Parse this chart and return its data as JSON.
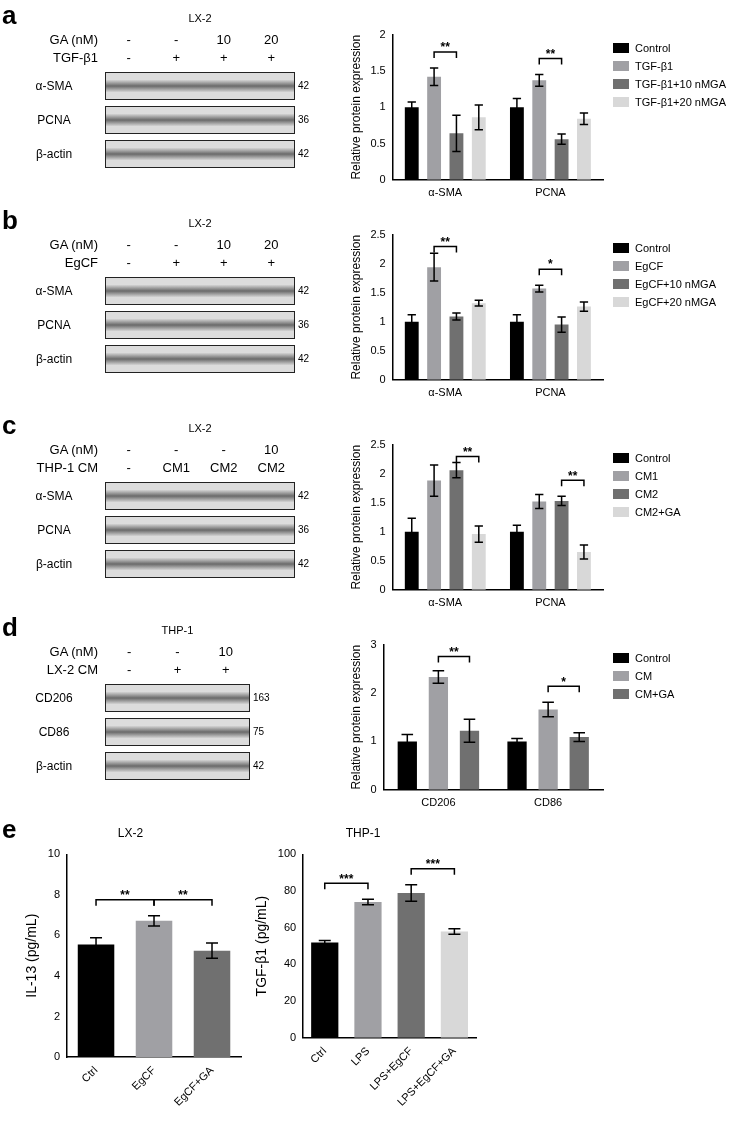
{
  "chart_data": [
    {
      "type": "other",
      "title": "LX-2",
      "annotations": [
        "a"
      ],
      "cell_labels": [
        [
          "GA (nM)",
          "-",
          "-",
          "10",
          "20"
        ],
        [
          "TGF-β1",
          "-",
          "+",
          "+",
          "+"
        ]
      ],
      "y_categories": [
        "α-SMA",
        "PCNA",
        "β-actin"
      ],
      "y2_categories": [
        "42",
        "36",
        "42"
      ]
    },
    {
      "type": "bar",
      "categories": [
        "α-SMA",
        "PCNA"
      ],
      "ylabel": "Relative protein expression",
      "ylim": [
        0,
        2
      ],
      "yticks": [
        0,
        0.5,
        1,
        1.5,
        2
      ],
      "legend": "right",
      "series": [
        {
          "name": "Control",
          "color": "#000000",
          "values": [
            1.0,
            1.0
          ],
          "errors": [
            0.07,
            0.12
          ]
        },
        {
          "name": "TGF-β1",
          "color": "#a0a0a4",
          "values": [
            1.42,
            1.37
          ],
          "errors": [
            0.12,
            0.08
          ]
        },
        {
          "name": "TGF-β1+10 nMGA",
          "color": "#707070",
          "values": [
            0.64,
            0.56
          ],
          "errors": [
            0.25,
            0.07
          ]
        },
        {
          "name": "TGF-β1+20 nMGA",
          "color": "#d8d8d8",
          "values": [
            0.86,
            0.84
          ],
          "errors": [
            0.17,
            0.08
          ]
        }
      ],
      "annotations": [
        "**",
        "**"
      ]
    },
    {
      "type": "other",
      "title": "LX-2",
      "annotations": [
        "b"
      ],
      "cell_labels": [
        [
          "GA (nM)",
          "-",
          "-",
          "10",
          "20"
        ],
        [
          "EgCF",
          "-",
          "+",
          "+",
          "+"
        ]
      ],
      "y_categories": [
        "α-SMA",
        "PCNA",
        "β-actin"
      ],
      "y2_categories": [
        "42",
        "36",
        "42"
      ]
    },
    {
      "type": "bar",
      "categories": [
        "α-SMA",
        "PCNA"
      ],
      "ylabel": "Relative protein expression",
      "ylim": [
        0,
        2.5
      ],
      "yticks": [
        0,
        0.5,
        1,
        1.5,
        2,
        2.5
      ],
      "legend": "right",
      "series": [
        {
          "name": "Control",
          "color": "#000000",
          "values": [
            1.0,
            1.0
          ],
          "errors": [
            0.12,
            0.12
          ]
        },
        {
          "name": "EgCF",
          "color": "#a0a0a4",
          "values": [
            1.94,
            1.57
          ],
          "errors": [
            0.24,
            0.06
          ]
        },
        {
          "name": "EgCF+10 nMGA",
          "color": "#707070",
          "values": [
            1.09,
            0.95
          ],
          "errors": [
            0.06,
            0.13
          ]
        },
        {
          "name": "EgCF+20 nMGA",
          "color": "#d8d8d8",
          "values": [
            1.32,
            1.26
          ],
          "errors": [
            0.05,
            0.08
          ]
        }
      ],
      "annotations": [
        "**",
        "*"
      ]
    },
    {
      "type": "other",
      "title": "LX-2",
      "annotations": [
        "c"
      ],
      "cell_labels": [
        [
          "GA (nM)",
          "-",
          "-",
          "-",
          "10"
        ],
        [
          "THP-1 CM",
          "-",
          "CM1",
          "CM2",
          "CM2"
        ]
      ],
      "y_categories": [
        "α-SMA",
        "PCNA",
        "β-actin"
      ],
      "y2_categories": [
        "42",
        "36",
        "42"
      ]
    },
    {
      "type": "bar",
      "categories": [
        "α-SMA",
        "PCNA"
      ],
      "ylabel": "Relative protein expression",
      "ylim": [
        0,
        2.5
      ],
      "yticks": [
        0,
        0.5,
        1,
        1.5,
        2,
        2.5
      ],
      "legend": "right",
      "series": [
        {
          "name": "Control",
          "color": "#000000",
          "values": [
            1.0,
            1.0
          ],
          "errors": [
            0.23,
            0.11
          ]
        },
        {
          "name": "CM1",
          "color": "#a0a0a4",
          "values": [
            1.88,
            1.52
          ],
          "errors": [
            0.27,
            0.12
          ]
        },
        {
          "name": "CM2",
          "color": "#707070",
          "values": [
            2.06,
            1.53
          ],
          "errors": [
            0.13,
            0.08
          ]
        },
        {
          "name": "CM2+GA",
          "color": "#d8d8d8",
          "values": [
            0.96,
            0.65
          ],
          "errors": [
            0.14,
            0.12
          ]
        }
      ],
      "annotations": [
        "**",
        "**"
      ]
    },
    {
      "type": "other",
      "title": "THP-1",
      "annotations": [
        "d"
      ],
      "cell_labels": [
        [
          "GA (nM)",
          "-",
          "-",
          "10"
        ],
        [
          "LX-2 CM",
          "-",
          "+",
          "+"
        ]
      ],
      "y_categories": [
        "CD206",
        "CD86",
        "β-actin"
      ],
      "y2_categories": [
        "163",
        "75",
        "42"
      ]
    },
    {
      "type": "bar",
      "categories": [
        "CD206",
        "CD86"
      ],
      "ylabel": "Relative protein expression",
      "ylim": [
        0,
        3
      ],
      "yticks": [
        0,
        1,
        2,
        3
      ],
      "legend": "right",
      "series": [
        {
          "name": "Control",
          "color": "#000000",
          "values": [
            1.0,
            1.0
          ],
          "errors": [
            0.14,
            0.06
          ]
        },
        {
          "name": "CM",
          "color": "#a0a0a4",
          "values": [
            2.33,
            1.66
          ],
          "errors": [
            0.13,
            0.15
          ]
        },
        {
          "name": "CM+GA",
          "color": "#707070",
          "values": [
            1.22,
            1.09
          ],
          "errors": [
            0.24,
            0.09
          ]
        }
      ],
      "annotations": [
        "**",
        "*"
      ]
    },
    {
      "type": "bar",
      "title": "LX-2",
      "categories": [
        "Ctrl",
        "EgCF",
        "EgCF+GA"
      ],
      "ylabel": "IL-13 (pg/mL)",
      "ylim": [
        0,
        10
      ],
      "yticks": [
        0,
        2,
        4,
        6,
        8,
        10
      ],
      "values": [
        5.55,
        6.72,
        5.25
      ],
      "colors": [
        "#000000",
        "#a0a0a4",
        "#707070"
      ],
      "errors": [
        0.33,
        0.25,
        0.38
      ],
      "annotations": [
        "e",
        "**",
        "**"
      ]
    },
    {
      "type": "bar",
      "title": "THP-1",
      "categories": [
        "Ctrl",
        "LPS",
        "LPS+EgCF",
        "LPS+EgCF+GA"
      ],
      "ylabel": "TGF-β1 (pg/mL)",
      "ylim": [
        0,
        100
      ],
      "yticks": [
        0,
        20,
        40,
        60,
        80,
        100
      ],
      "values": [
        52,
        74,
        79,
        58
      ],
      "colors": [
        "#000000",
        "#a0a0a4",
        "#707070",
        "#d8d8d8"
      ],
      "errors": [
        1,
        1.5,
        4.5,
        1.5
      ],
      "annotations": [
        "***",
        "***"
      ]
    }
  ]
}
